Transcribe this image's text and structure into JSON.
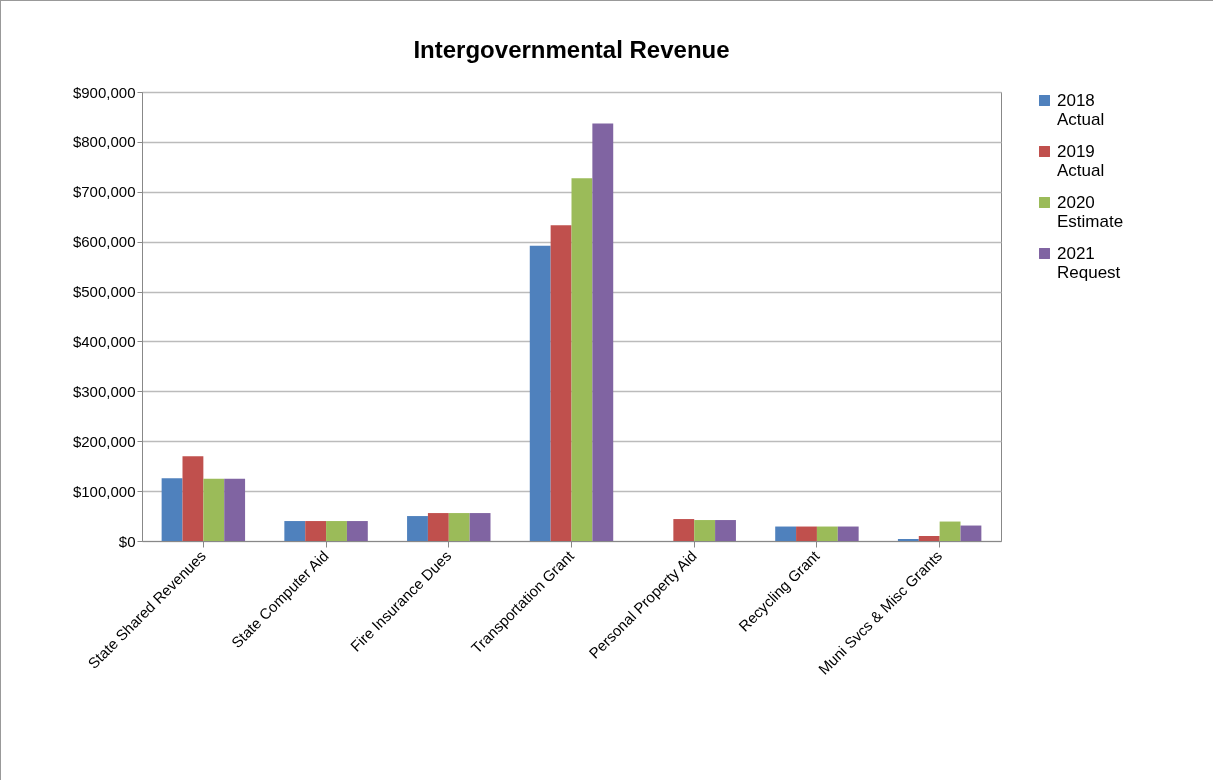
{
  "chart_data": {
    "type": "bar",
    "title": "Intergovernmental Revenue",
    "categories": [
      "State Shared Revenues",
      "State Computer Aid",
      "Fire Insurance Dues",
      "Transportation Grant",
      "Personal Property Aid",
      "Recycling Grant",
      "Muni Svcs & Misc Grants"
    ],
    "series": [
      {
        "name": "2018 Actual",
        "color": "#4f81bd",
        "values": [
          126000,
          40000,
          50000,
          592000,
          0,
          29000,
          4000
        ]
      },
      {
        "name": "2019 Actual",
        "color": "#c0504d",
        "values": [
          170000,
          40000,
          56000,
          633000,
          44000,
          29000,
          10000
        ]
      },
      {
        "name": "2020 Estimate",
        "color": "#9bbb59",
        "values": [
          125000,
          40000,
          56000,
          727000,
          42000,
          29000,
          39000
        ]
      },
      {
        "name": "2021 Request",
        "color": "#8064a2",
        "values": [
          125000,
          40000,
          56000,
          837000,
          42000,
          29000,
          31000
        ]
      }
    ],
    "ylim": [
      0,
      900000
    ],
    "yticks": [
      {
        "value": 0,
        "label": "$0"
      },
      {
        "value": 100000,
        "label": "$100,000"
      },
      {
        "value": 200000,
        "label": "$200,000"
      },
      {
        "value": 300000,
        "label": "$300,000"
      },
      {
        "value": 400000,
        "label": "$400,000"
      },
      {
        "value": 500000,
        "label": "$500,000"
      },
      {
        "value": 600000,
        "label": "$600,000"
      },
      {
        "value": 700000,
        "label": "$700,000"
      },
      {
        "value": 800000,
        "label": "$800,000"
      },
      {
        "value": 900000,
        "label": "$900,000"
      }
    ],
    "grid": "y",
    "legend": "right"
  }
}
